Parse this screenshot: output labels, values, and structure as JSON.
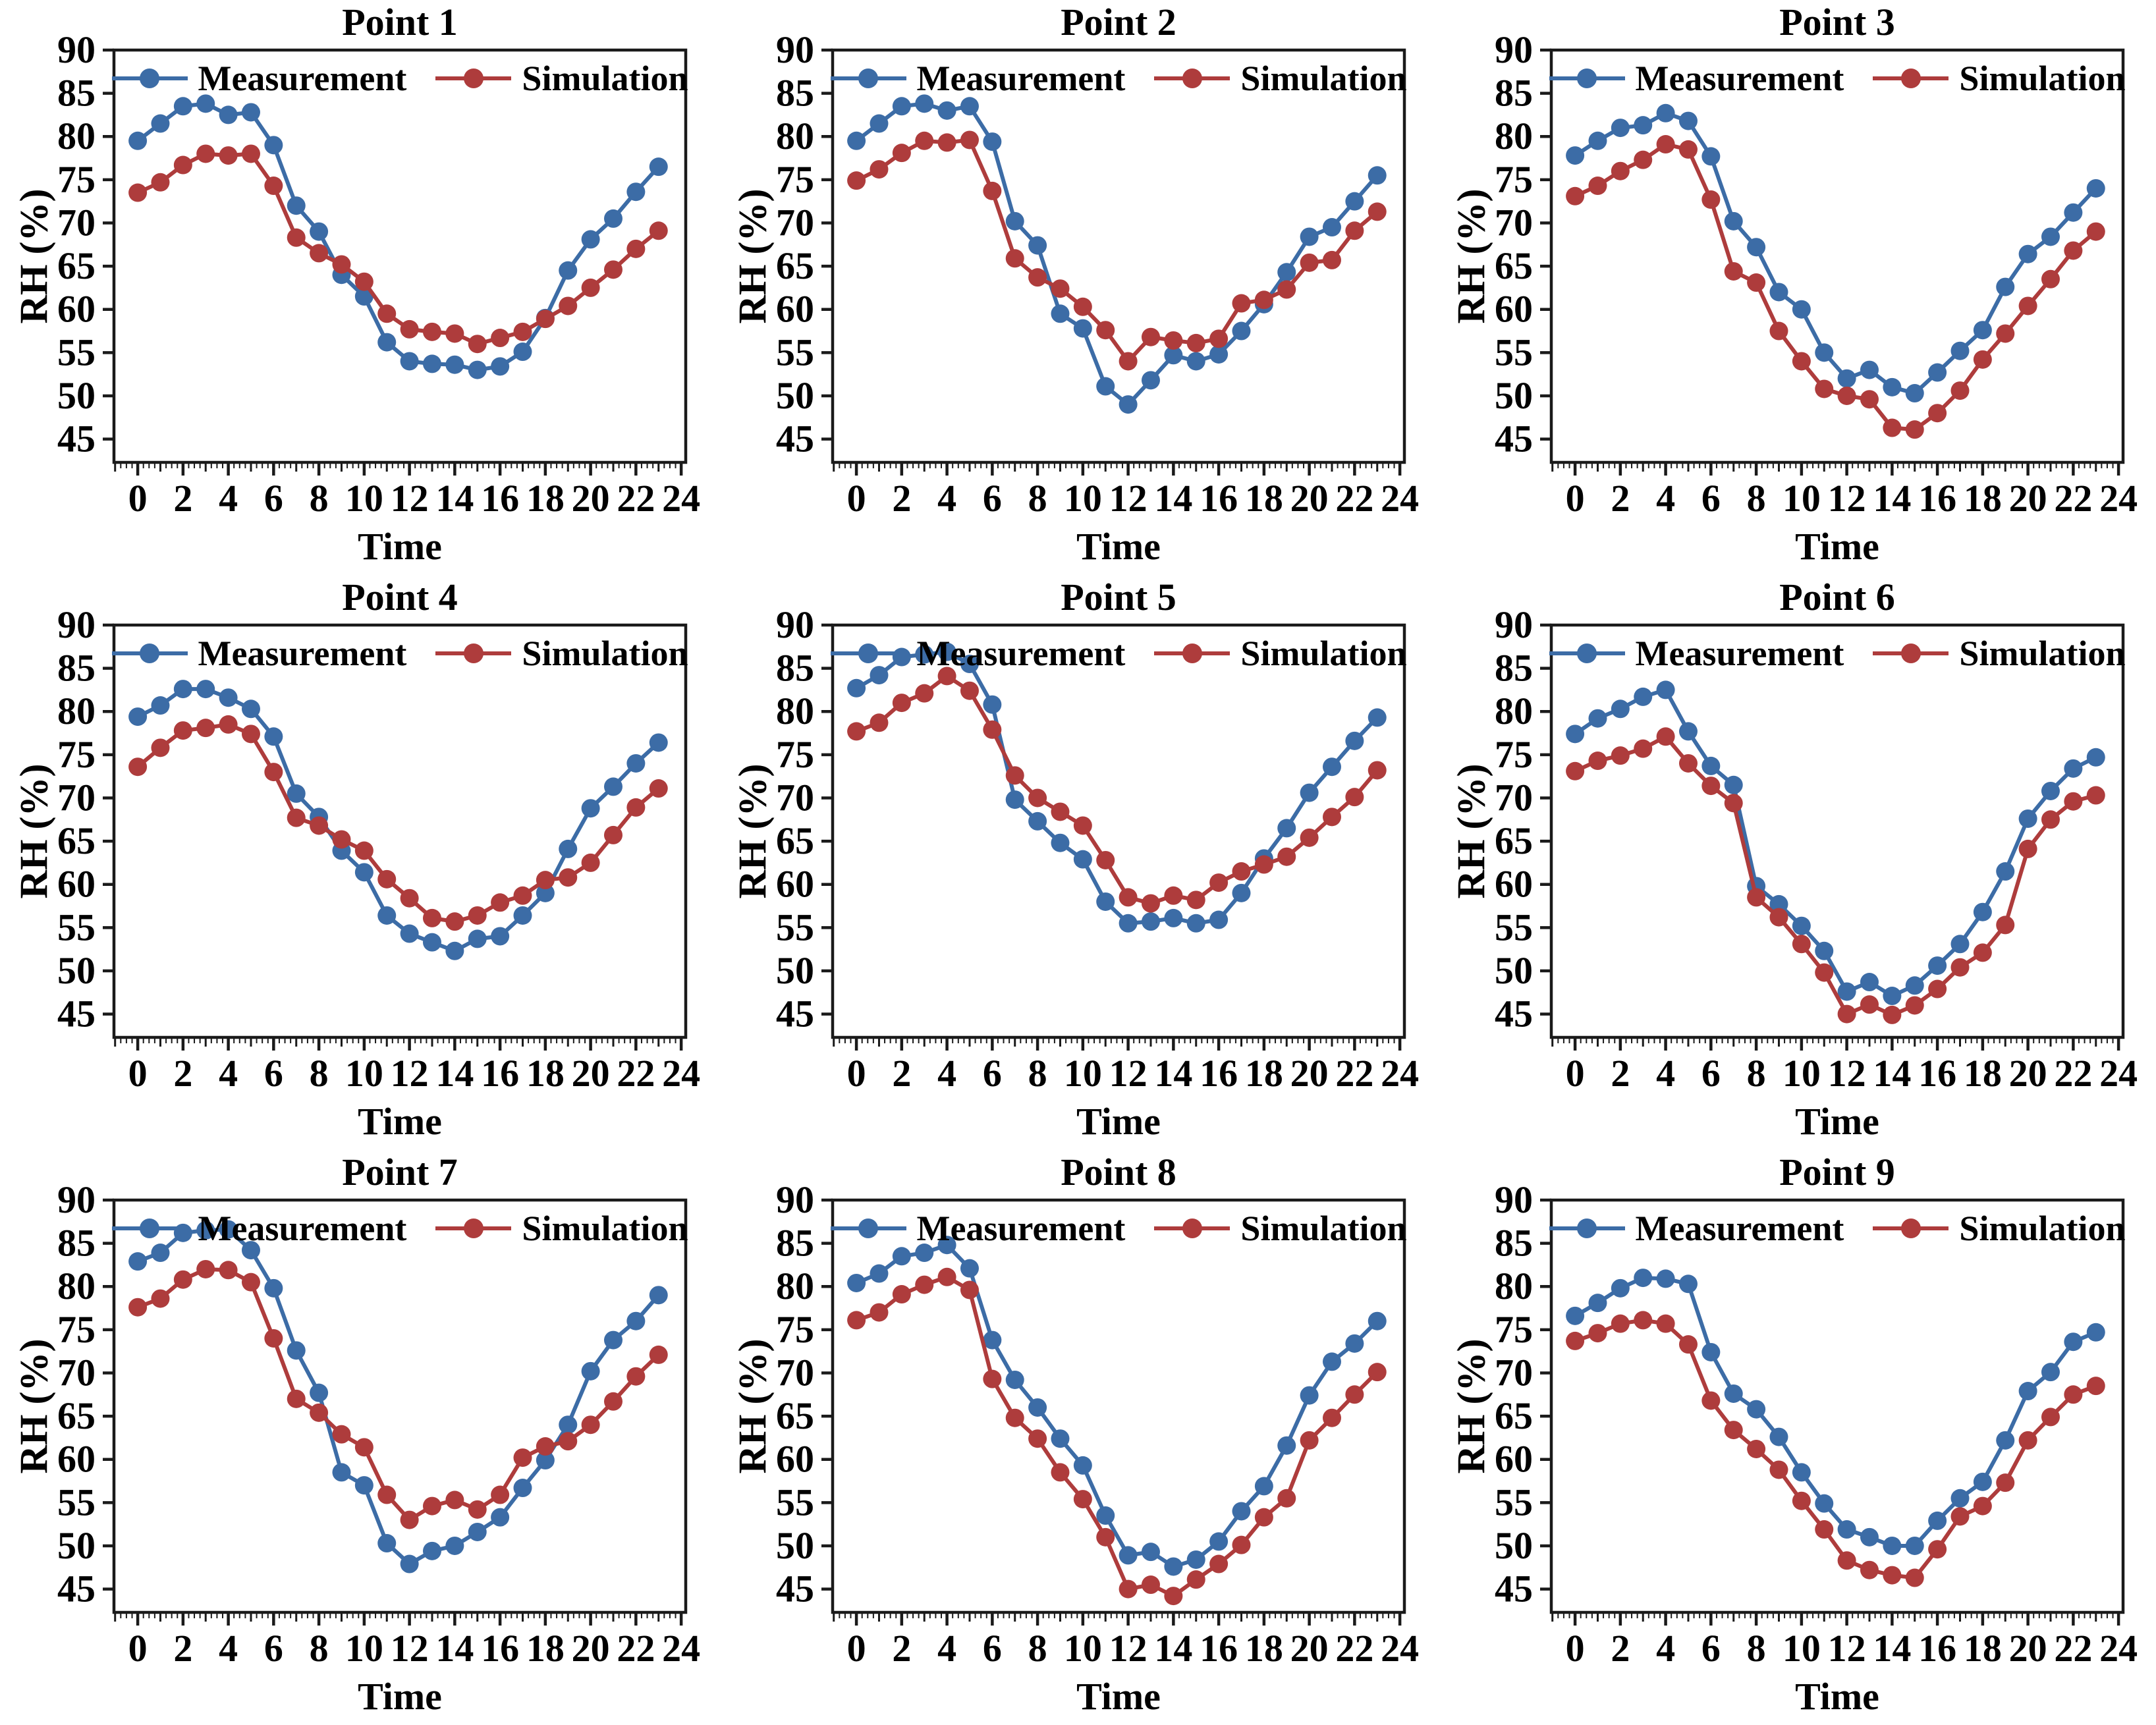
{
  "page": {
    "background": "#ffffff"
  },
  "colors": {
    "measurement": "#3C6CA6",
    "simulation": "#AE3C3C",
    "axis": "#1a1a1a",
    "text": "#000000"
  },
  "chart_data": [
    {
      "type": "line",
      "title": "Point 1",
      "xlabel": "Time",
      "ylabel": "RH (%)",
      "x": [
        0,
        1,
        2,
        3,
        4,
        5,
        6,
        7,
        8,
        9,
        10,
        11,
        12,
        13,
        14,
        15,
        16,
        17,
        18,
        19,
        20,
        21,
        22,
        23
      ],
      "xticks": [
        0,
        2,
        4,
        6,
        8,
        10,
        12,
        14,
        16,
        18,
        20,
        22,
        24
      ],
      "yticks": [
        45,
        50,
        55,
        60,
        65,
        70,
        75,
        80,
        85,
        90
      ],
      "ylim": [
        42.3,
        90
      ],
      "xlim": [
        -1.05,
        24.2
      ],
      "grid": false,
      "legend_position": "top-center-inside",
      "series": [
        {
          "name": "Measurement",
          "color": "#3C6CA6",
          "values": [
            79.5,
            81.5,
            83.5,
            83.8,
            82.5,
            82.8,
            79.0,
            72.0,
            69.0,
            64.0,
            61.5,
            56.2,
            54.0,
            53.7,
            53.6,
            53.0,
            53.4,
            55.1,
            59.0,
            64.5,
            68.1,
            70.5,
            73.6,
            76.5
          ]
        },
        {
          "name": "Simulation",
          "color": "#AE3C3C",
          "values": [
            73.5,
            74.7,
            76.7,
            78.0,
            77.8,
            78.0,
            74.3,
            68.3,
            66.5,
            65.2,
            63.2,
            59.5,
            57.7,
            57.4,
            57.2,
            56.0,
            56.7,
            57.4,
            58.9,
            60.4,
            62.5,
            64.6,
            67.0,
            69.1
          ]
        }
      ]
    },
    {
      "type": "line",
      "title": "Point 2",
      "xlabel": "Time",
      "ylabel": "RH (%)",
      "x": [
        0,
        1,
        2,
        3,
        4,
        5,
        6,
        7,
        8,
        9,
        10,
        11,
        12,
        13,
        14,
        15,
        16,
        17,
        18,
        19,
        20,
        21,
        22,
        23
      ],
      "xticks": [
        0,
        2,
        4,
        6,
        8,
        10,
        12,
        14,
        16,
        18,
        20,
        22,
        24
      ],
      "yticks": [
        45,
        50,
        55,
        60,
        65,
        70,
        75,
        80,
        85,
        90
      ],
      "ylim": [
        42.3,
        90
      ],
      "xlim": [
        -1.05,
        24.2
      ],
      "grid": false,
      "legend_position": "top-center-inside",
      "series": [
        {
          "name": "Measurement",
          "color": "#3C6CA6",
          "values": [
            79.5,
            81.5,
            83.5,
            83.8,
            83.0,
            83.5,
            79.4,
            70.2,
            67.4,
            59.5,
            57.8,
            51.1,
            49.0,
            51.8,
            54.7,
            54.0,
            54.8,
            57.5,
            60.6,
            64.3,
            68.4,
            69.5,
            72.5,
            75.5
          ]
        },
        {
          "name": "Simulation",
          "color": "#AE3C3C",
          "values": [
            74.9,
            76.2,
            78.1,
            79.5,
            79.3,
            79.6,
            73.7,
            65.9,
            63.7,
            62.4,
            60.3,
            57.6,
            54.0,
            56.8,
            56.4,
            56.1,
            56.6,
            60.7,
            61.1,
            62.3,
            65.4,
            65.7,
            69.1,
            71.3
          ]
        }
      ]
    },
    {
      "type": "line",
      "title": "Point 3",
      "xlabel": "Time",
      "ylabel": "RH (%)",
      "x": [
        0,
        1,
        2,
        3,
        4,
        5,
        6,
        7,
        8,
        9,
        10,
        11,
        12,
        13,
        14,
        15,
        16,
        17,
        18,
        19,
        20,
        21,
        22,
        23
      ],
      "xticks": [
        0,
        2,
        4,
        6,
        8,
        10,
        12,
        14,
        16,
        18,
        20,
        22,
        24
      ],
      "yticks": [
        45,
        50,
        55,
        60,
        65,
        70,
        75,
        80,
        85,
        90
      ],
      "ylim": [
        42.3,
        90
      ],
      "xlim": [
        -1.05,
        24.2
      ],
      "grid": false,
      "legend_position": "top-center-inside",
      "series": [
        {
          "name": "Measurement",
          "color": "#3C6CA6",
          "values": [
            77.8,
            79.5,
            81.0,
            81.3,
            82.7,
            81.8,
            77.7,
            70.2,
            67.2,
            62.0,
            60.0,
            55.0,
            52.0,
            53.0,
            51.0,
            50.3,
            52.7,
            55.2,
            57.6,
            62.6,
            66.4,
            68.4,
            71.2,
            74.0
          ]
        },
        {
          "name": "Simulation",
          "color": "#AE3C3C",
          "values": [
            73.1,
            74.3,
            76.0,
            77.3,
            79.1,
            78.5,
            72.7,
            64.4,
            63.1,
            57.5,
            54.0,
            50.8,
            50.0,
            49.6,
            46.3,
            46.1,
            48.0,
            50.6,
            54.2,
            57.2,
            60.4,
            63.5,
            66.8,
            69.0
          ]
        }
      ]
    },
    {
      "type": "line",
      "title": "Point 4",
      "xlabel": "Time",
      "ylabel": "RH (%)",
      "x": [
        0,
        1,
        2,
        3,
        4,
        5,
        6,
        7,
        8,
        9,
        10,
        11,
        12,
        13,
        14,
        15,
        16,
        17,
        18,
        19,
        20,
        21,
        22,
        23
      ],
      "xticks": [
        0,
        2,
        4,
        6,
        8,
        10,
        12,
        14,
        16,
        18,
        20,
        22,
        24
      ],
      "yticks": [
        45,
        50,
        55,
        60,
        65,
        70,
        75,
        80,
        85,
        90
      ],
      "ylim": [
        42.3,
        90
      ],
      "xlim": [
        -1.05,
        24.2
      ],
      "grid": false,
      "legend_position": "top-center-inside",
      "series": [
        {
          "name": "Measurement",
          "color": "#3C6CA6",
          "values": [
            79.4,
            80.7,
            82.6,
            82.6,
            81.6,
            80.3,
            77.1,
            70.5,
            67.8,
            63.9,
            61.4,
            56.4,
            54.3,
            53.3,
            52.3,
            53.7,
            54.0,
            56.4,
            59.0,
            64.1,
            68.8,
            71.3,
            74.0,
            76.4
          ]
        },
        {
          "name": "Simulation",
          "color": "#AE3C3C",
          "values": [
            73.6,
            75.8,
            77.8,
            78.1,
            78.5,
            77.4,
            73.0,
            67.7,
            66.8,
            65.2,
            63.9,
            60.6,
            58.4,
            56.1,
            55.7,
            56.4,
            57.9,
            58.7,
            60.5,
            60.8,
            62.5,
            65.7,
            68.9,
            71.1
          ]
        }
      ]
    },
    {
      "type": "line",
      "title": "Point 5",
      "xlabel": "Time",
      "ylabel": "RH (%)",
      "x": [
        0,
        1,
        2,
        3,
        4,
        5,
        6,
        7,
        8,
        9,
        10,
        11,
        12,
        13,
        14,
        15,
        16,
        17,
        18,
        19,
        20,
        21,
        22,
        23
      ],
      "xticks": [
        0,
        2,
        4,
        6,
        8,
        10,
        12,
        14,
        16,
        18,
        20,
        22,
        24
      ],
      "yticks": [
        45,
        50,
        55,
        60,
        65,
        70,
        75,
        80,
        85,
        90
      ],
      "ylim": [
        42.3,
        90
      ],
      "xlim": [
        -1.05,
        24.2
      ],
      "grid": false,
      "legend_position": "top-center-inside",
      "series": [
        {
          "name": "Measurement",
          "color": "#3C6CA6",
          "values": [
            82.7,
            84.2,
            86.3,
            86.6,
            86.9,
            85.5,
            80.8,
            69.8,
            67.3,
            64.8,
            62.9,
            58.0,
            55.5,
            55.7,
            56.1,
            55.5,
            55.9,
            59.0,
            63.0,
            66.5,
            70.6,
            73.6,
            76.6,
            79.3
          ]
        },
        {
          "name": "Simulation",
          "color": "#AE3C3C",
          "values": [
            77.7,
            78.7,
            81.0,
            82.1,
            84.1,
            82.4,
            77.9,
            72.6,
            70.0,
            68.4,
            66.8,
            62.8,
            58.5,
            57.8,
            58.7,
            58.2,
            60.2,
            61.5,
            62.3,
            63.2,
            65.4,
            67.8,
            70.1,
            73.2
          ]
        }
      ]
    },
    {
      "type": "line",
      "title": "Point 6",
      "xlabel": "Time",
      "ylabel": "RH (%)",
      "x": [
        0,
        1,
        2,
        3,
        4,
        5,
        6,
        7,
        8,
        9,
        10,
        11,
        12,
        13,
        14,
        15,
        16,
        17,
        18,
        19,
        20,
        21,
        22,
        23
      ],
      "xticks": [
        0,
        2,
        4,
        6,
        8,
        10,
        12,
        14,
        16,
        18,
        20,
        22,
        24
      ],
      "yticks": [
        45,
        50,
        55,
        60,
        65,
        70,
        75,
        80,
        85,
        90
      ],
      "ylim": [
        42.3,
        90
      ],
      "xlim": [
        -1.05,
        24.2
      ],
      "grid": false,
      "legend_position": "top-center-inside",
      "series": [
        {
          "name": "Measurement",
          "color": "#3C6CA6",
          "values": [
            77.4,
            79.2,
            80.3,
            81.7,
            82.5,
            77.7,
            73.7,
            71.5,
            59.8,
            57.7,
            55.2,
            52.3,
            47.6,
            48.7,
            47.1,
            48.3,
            50.6,
            53.1,
            56.8,
            61.5,
            67.6,
            70.8,
            73.4,
            74.7
          ]
        },
        {
          "name": "Simulation",
          "color": "#AE3C3C",
          "values": [
            73.1,
            74.3,
            74.9,
            75.7,
            77.1,
            74.0,
            71.4,
            69.4,
            58.5,
            56.2,
            53.1,
            49.8,
            45.0,
            46.1,
            44.9,
            46.0,
            47.9,
            50.4,
            52.1,
            55.3,
            64.1,
            67.5,
            69.6,
            70.3
          ]
        }
      ]
    },
    {
      "type": "line",
      "title": "Point 7",
      "xlabel": "Time",
      "ylabel": "RH (%)",
      "x": [
        0,
        1,
        2,
        3,
        4,
        5,
        6,
        7,
        8,
        9,
        10,
        11,
        12,
        13,
        14,
        15,
        16,
        17,
        18,
        19,
        20,
        21,
        22,
        23
      ],
      "xticks": [
        0,
        2,
        4,
        6,
        8,
        10,
        12,
        14,
        16,
        18,
        20,
        22,
        24
      ],
      "yticks": [
        45,
        50,
        55,
        60,
        65,
        70,
        75,
        80,
        85,
        90
      ],
      "ylim": [
        42.3,
        90
      ],
      "xlim": [
        -1.05,
        24.2
      ],
      "grid": false,
      "legend_position": "top-center-inside",
      "series": [
        {
          "name": "Measurement",
          "color": "#3C6CA6",
          "values": [
            82.9,
            83.9,
            86.2,
            86.5,
            86.6,
            84.2,
            79.8,
            72.6,
            67.7,
            58.5,
            57.0,
            50.3,
            47.9,
            49.4,
            50.0,
            51.6,
            53.3,
            56.7,
            59.9,
            64.0,
            70.2,
            73.8,
            76.0,
            79.0
          ]
        },
        {
          "name": "Simulation",
          "color": "#AE3C3C",
          "values": [
            77.6,
            78.6,
            80.8,
            82.0,
            81.9,
            80.5,
            74.0,
            67.0,
            65.4,
            62.9,
            61.4,
            55.9,
            53.0,
            54.6,
            55.3,
            54.2,
            55.9,
            60.2,
            61.5,
            62.1,
            64.0,
            66.7,
            69.6,
            72.1
          ]
        }
      ]
    },
    {
      "type": "line",
      "title": "Point 8",
      "xlabel": "Time",
      "ylabel": "RH (%)",
      "x": [
        0,
        1,
        2,
        3,
        4,
        5,
        6,
        7,
        8,
        9,
        10,
        11,
        12,
        13,
        14,
        15,
        16,
        17,
        18,
        19,
        20,
        21,
        22,
        23
      ],
      "xticks": [
        0,
        2,
        4,
        6,
        8,
        10,
        12,
        14,
        16,
        18,
        20,
        22,
        24
      ],
      "yticks": [
        45,
        50,
        55,
        60,
        65,
        70,
        75,
        80,
        85,
        90
      ],
      "ylim": [
        42.3,
        90
      ],
      "xlim": [
        -1.05,
        24.2
      ],
      "grid": false,
      "legend_position": "top-center-inside",
      "series": [
        {
          "name": "Measurement",
          "color": "#3C6CA6",
          "values": [
            80.4,
            81.5,
            83.5,
            83.9,
            84.8,
            82.1,
            73.8,
            69.2,
            66.0,
            62.4,
            59.3,
            53.5,
            48.9,
            49.3,
            47.6,
            48.4,
            50.5,
            54.0,
            56.9,
            61.6,
            67.4,
            71.3,
            73.4,
            76.0
          ]
        },
        {
          "name": "Simulation",
          "color": "#AE3C3C",
          "values": [
            76.1,
            77.0,
            79.1,
            80.2,
            81.1,
            79.6,
            69.3,
            64.8,
            62.4,
            58.5,
            55.4,
            51.0,
            45.0,
            45.5,
            44.2,
            46.1,
            47.9,
            50.1,
            53.3,
            55.5,
            62.2,
            64.8,
            67.5,
            70.1
          ]
        }
      ]
    },
    {
      "type": "line",
      "title": "Point 9",
      "xlabel": "Time",
      "ylabel": "RH (%)",
      "x": [
        0,
        1,
        2,
        3,
        4,
        5,
        6,
        7,
        8,
        9,
        10,
        11,
        12,
        13,
        14,
        15,
        16,
        17,
        18,
        19,
        20,
        21,
        22,
        23
      ],
      "xticks": [
        0,
        2,
        4,
        6,
        8,
        10,
        12,
        14,
        16,
        18,
        20,
        22,
        24
      ],
      "yticks": [
        45,
        50,
        55,
        60,
        65,
        70,
        75,
        80,
        85,
        90
      ],
      "ylim": [
        42.3,
        90
      ],
      "xlim": [
        -1.05,
        24.2
      ],
      "grid": false,
      "legend_position": "top-center-inside",
      "series": [
        {
          "name": "Measurement",
          "color": "#3C6CA6",
          "values": [
            76.6,
            78.1,
            79.8,
            81.0,
            80.9,
            80.3,
            72.4,
            67.6,
            65.8,
            62.6,
            58.5,
            54.9,
            51.9,
            51.0,
            50.0,
            50.0,
            52.9,
            55.5,
            57.4,
            62.2,
            67.9,
            70.1,
            73.6,
            74.7
          ]
        },
        {
          "name": "Simulation",
          "color": "#AE3C3C",
          "values": [
            73.7,
            74.6,
            75.7,
            76.1,
            75.7,
            73.3,
            66.8,
            63.4,
            61.2,
            58.8,
            55.2,
            51.9,
            48.3,
            47.2,
            46.6,
            46.3,
            49.6,
            53.4,
            54.6,
            57.3,
            62.2,
            64.9,
            67.5,
            68.5
          ]
        }
      ]
    }
  ]
}
